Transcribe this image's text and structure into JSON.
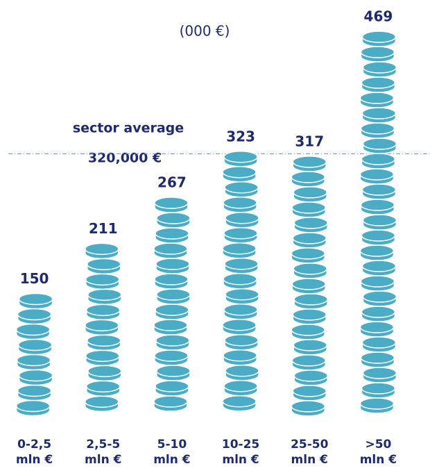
{
  "chart_data": {
    "type": "coin-stack",
    "subtitle": "(000 €)",
    "categories": [
      "0-2,5 mln €",
      "2,5-5 mln €",
      "5-10 mln €",
      "10-25 mln €",
      "25-50 mln €",
      ">50 mln €"
    ],
    "values": [
      150,
      211,
      267,
      323,
      317,
      469
    ],
    "color": "#4bacc6",
    "label_color": "#1f2a6b",
    "ylim": [
      0,
      480
    ],
    "reference_line": {
      "name": "sector average",
      "value": 320,
      "label": "320,000 €"
    }
  }
}
